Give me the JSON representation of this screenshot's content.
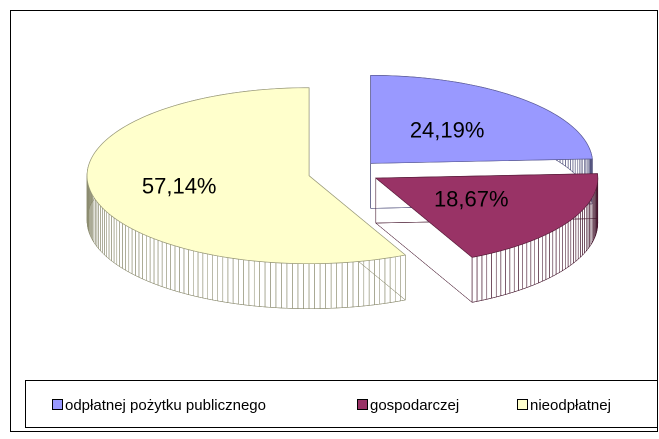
{
  "chart_data": {
    "type": "pie3d",
    "categories": [
      "odpłatnej pożytku publicznego",
      "gospodarczej",
      "nieodpłatnej"
    ],
    "values": [
      24.19,
      18.67,
      57.14
    ],
    "value_labels": [
      "24,19%",
      "18,67%",
      "57,14%"
    ],
    "colors": [
      "#9999ff",
      "#993366",
      "#ffffcc"
    ],
    "legend": "bottom"
  }
}
